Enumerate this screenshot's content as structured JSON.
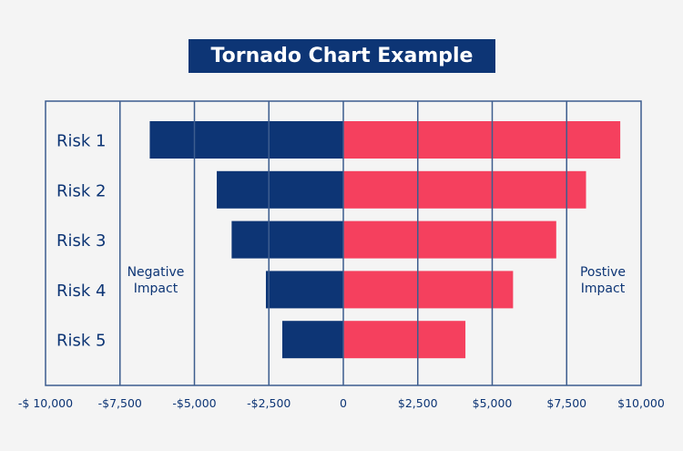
{
  "chart_data": {
    "type": "bar",
    "orientation": "horizontal-tornado",
    "title": "Tornado Chart Example",
    "categories": [
      "Risk 1",
      "Risk 2",
      "Risk 3",
      "Risk 4",
      "Risk 5"
    ],
    "series": [
      {
        "name": "Negative Impact",
        "color": "#0d3575",
        "values": [
          -6500,
          -4250,
          -3750,
          -2600,
          -2050
        ]
      },
      {
        "name": "Postive Impact",
        "color": "#f5405e",
        "values": [
          9300,
          8150,
          7150,
          5700,
          4100
        ]
      }
    ],
    "xlim": [
      -10000,
      10000
    ],
    "xticks": [
      -10000,
      -7500,
      -5000,
      -2500,
      0,
      2500,
      5000,
      7500,
      10000
    ],
    "xtick_labels": [
      "-$ 10,000",
      "-$7,500",
      "-$5,000",
      "-$2,500",
      "0",
      "$2,500",
      "$5,000",
      "$7,500",
      "$10,000"
    ],
    "annotations": {
      "negative": [
        "Negative",
        "Impact"
      ],
      "positive": [
        "Postive",
        "Impact"
      ]
    },
    "grid": true,
    "grid_color": "#3d5d8e"
  }
}
